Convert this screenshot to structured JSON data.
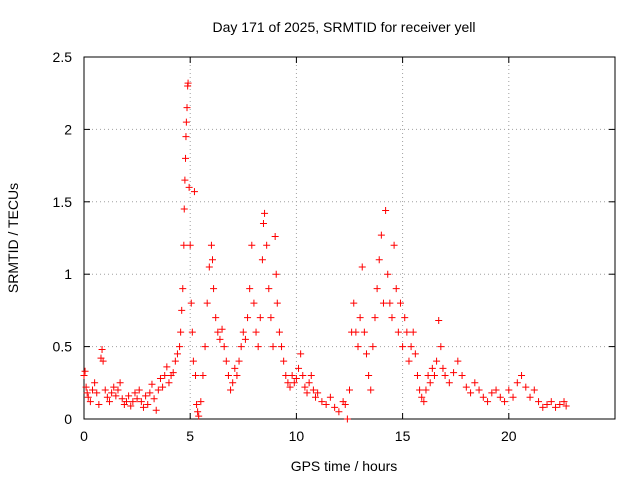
{
  "chart_data": {
    "type": "scatter",
    "title": "Day 171 of 2025, SRMTID for receiver yell",
    "xlabel": "GPS time / hours",
    "ylabel": "SRMTID / TECUs",
    "xlim": [
      0,
      25
    ],
    "ylim": [
      0,
      2.5
    ],
    "x_ticks": [
      0,
      5,
      10,
      15,
      20
    ],
    "x_tick_labels": [
      "0",
      "5",
      "10",
      "15",
      "20"
    ],
    "y_ticks": [
      0,
      0.5,
      1,
      1.5,
      2,
      2.5
    ],
    "y_tick_labels": [
      "0",
      "0.5",
      "1",
      "1.5",
      "2",
      "2.5"
    ],
    "grid": true,
    "marker": "plus",
    "color": "#ff0000",
    "series": [
      {
        "name": "SRMTID",
        "points": [
          [
            0.0,
            0.3
          ],
          [
            0.05,
            0.33
          ],
          [
            0.1,
            0.22
          ],
          [
            0.15,
            0.18
          ],
          [
            0.2,
            0.15
          ],
          [
            0.3,
            0.12
          ],
          [
            0.4,
            0.2
          ],
          [
            0.5,
            0.25
          ],
          [
            0.6,
            0.18
          ],
          [
            0.7,
            0.1
          ],
          [
            0.8,
            0.42
          ],
          [
            0.85,
            0.48
          ],
          [
            0.9,
            0.4
          ],
          [
            1.0,
            0.2
          ],
          [
            1.1,
            0.15
          ],
          [
            1.2,
            0.12
          ],
          [
            1.3,
            0.18
          ],
          [
            1.4,
            0.22
          ],
          [
            1.5,
            0.16
          ],
          [
            1.6,
            0.2
          ],
          [
            1.7,
            0.25
          ],
          [
            1.8,
            0.14
          ],
          [
            1.9,
            0.1
          ],
          [
            2.0,
            0.12
          ],
          [
            2.1,
            0.16
          ],
          [
            2.2,
            0.09
          ],
          [
            2.3,
            0.12
          ],
          [
            2.4,
            0.18
          ],
          [
            2.5,
            0.14
          ],
          [
            2.6,
            0.2
          ],
          [
            2.7,
            0.12
          ],
          [
            2.8,
            0.08
          ],
          [
            2.9,
            0.16
          ],
          [
            3.0,
            0.1
          ],
          [
            3.1,
            0.18
          ],
          [
            3.2,
            0.24
          ],
          [
            3.3,
            0.14
          ],
          [
            3.4,
            0.06
          ],
          [
            3.5,
            0.2
          ],
          [
            3.6,
            0.28
          ],
          [
            3.7,
            0.22
          ],
          [
            3.8,
            0.3
          ],
          [
            3.9,
            0.36
          ],
          [
            4.0,
            0.25
          ],
          [
            4.1,
            0.3
          ],
          [
            4.2,
            0.32
          ],
          [
            4.3,
            0.4
          ],
          [
            4.4,
            0.45
          ],
          [
            4.5,
            0.5
          ],
          [
            4.55,
            0.6
          ],
          [
            4.6,
            0.75
          ],
          [
            4.65,
            0.9
          ],
          [
            4.7,
            1.2
          ],
          [
            4.72,
            1.45
          ],
          [
            4.75,
            1.65
          ],
          [
            4.78,
            1.8
          ],
          [
            4.8,
            1.95
          ],
          [
            4.82,
            2.05
          ],
          [
            4.85,
            2.15
          ],
          [
            4.88,
            2.3
          ],
          [
            4.9,
            2.32
          ],
          [
            4.95,
            1.6
          ],
          [
            5.0,
            1.2
          ],
          [
            5.05,
            0.8
          ],
          [
            5.1,
            0.6
          ],
          [
            5.15,
            0.4
          ],
          [
            5.2,
            1.57
          ],
          [
            5.25,
            0.3
          ],
          [
            5.3,
            0.1
          ],
          [
            5.35,
            0.05
          ],
          [
            5.4,
            0.02
          ],
          [
            5.5,
            0.12
          ],
          [
            5.6,
            0.3
          ],
          [
            5.7,
            0.5
          ],
          [
            5.8,
            0.8
          ],
          [
            5.9,
            1.05
          ],
          [
            6.0,
            1.2
          ],
          [
            6.05,
            1.1
          ],
          [
            6.1,
            0.9
          ],
          [
            6.2,
            0.7
          ],
          [
            6.3,
            0.6
          ],
          [
            6.4,
            0.55
          ],
          [
            6.5,
            0.62
          ],
          [
            6.6,
            0.5
          ],
          [
            6.7,
            0.4
          ],
          [
            6.8,
            0.3
          ],
          [
            6.9,
            0.2
          ],
          [
            7.0,
            0.25
          ],
          [
            7.1,
            0.35
          ],
          [
            7.2,
            0.3
          ],
          [
            7.3,
            0.4
          ],
          [
            7.4,
            0.5
          ],
          [
            7.5,
            0.6
          ],
          [
            7.6,
            0.55
          ],
          [
            7.7,
            0.7
          ],
          [
            7.8,
            0.9
          ],
          [
            7.9,
            1.2
          ],
          [
            8.0,
            0.8
          ],
          [
            8.1,
            0.6
          ],
          [
            8.2,
            0.5
          ],
          [
            8.3,
            0.7
          ],
          [
            8.4,
            1.1
          ],
          [
            8.45,
            1.35
          ],
          [
            8.5,
            1.42
          ],
          [
            8.6,
            1.2
          ],
          [
            8.7,
            0.9
          ],
          [
            8.8,
            0.7
          ],
          [
            8.9,
            0.5
          ],
          [
            9.0,
            1.26
          ],
          [
            9.05,
            1.0
          ],
          [
            9.1,
            0.8
          ],
          [
            9.2,
            0.6
          ],
          [
            9.3,
            0.5
          ],
          [
            9.4,
            0.4
          ],
          [
            9.5,
            0.3
          ],
          [
            9.6,
            0.25
          ],
          [
            9.7,
            0.22
          ],
          [
            9.8,
            0.3
          ],
          [
            9.9,
            0.25
          ],
          [
            10.0,
            0.28
          ],
          [
            10.1,
            0.35
          ],
          [
            10.2,
            0.45
          ],
          [
            10.3,
            0.3
          ],
          [
            10.4,
            0.22
          ],
          [
            10.5,
            0.18
          ],
          [
            10.6,
            0.25
          ],
          [
            10.7,
            0.3
          ],
          [
            10.8,
            0.2
          ],
          [
            10.9,
            0.15
          ],
          [
            11.0,
            0.18
          ],
          [
            11.2,
            0.12
          ],
          [
            11.4,
            0.1
          ],
          [
            11.6,
            0.15
          ],
          [
            11.8,
            0.08
          ],
          [
            12.0,
            0.05
          ],
          [
            12.2,
            0.12
          ],
          [
            12.3,
            0.1
          ],
          [
            12.4,
            0.0
          ],
          [
            12.5,
            0.2
          ],
          [
            12.6,
            0.6
          ],
          [
            12.7,
            0.8
          ],
          [
            12.8,
            0.6
          ],
          [
            12.9,
            0.5
          ],
          [
            13.0,
            0.7
          ],
          [
            13.1,
            1.05
          ],
          [
            13.2,
            0.6
          ],
          [
            13.3,
            0.45
          ],
          [
            13.4,
            0.3
          ],
          [
            13.5,
            0.2
          ],
          [
            13.6,
            0.5
          ],
          [
            13.7,
            0.7
          ],
          [
            13.8,
            0.9
          ],
          [
            13.9,
            1.1
          ],
          [
            14.0,
            1.27
          ],
          [
            14.1,
            0.8
          ],
          [
            14.2,
            1.44
          ],
          [
            14.3,
            1.0
          ],
          [
            14.4,
            0.8
          ],
          [
            14.5,
            0.7
          ],
          [
            14.6,
            1.2
          ],
          [
            14.7,
            0.9
          ],
          [
            14.8,
            0.6
          ],
          [
            14.9,
            0.8
          ],
          [
            15.0,
            0.5
          ],
          [
            15.1,
            0.7
          ],
          [
            15.2,
            0.6
          ],
          [
            15.3,
            0.4
          ],
          [
            15.4,
            0.5
          ],
          [
            15.5,
            0.6
          ],
          [
            15.6,
            0.45
          ],
          [
            15.7,
            0.3
          ],
          [
            15.8,
            0.2
          ],
          [
            15.9,
            0.15
          ],
          [
            16.0,
            0.12
          ],
          [
            16.1,
            0.2
          ],
          [
            16.2,
            0.3
          ],
          [
            16.3,
            0.25
          ],
          [
            16.4,
            0.35
          ],
          [
            16.5,
            0.3
          ],
          [
            16.6,
            0.4
          ],
          [
            16.7,
            0.68
          ],
          [
            16.8,
            0.5
          ],
          [
            16.9,
            0.35
          ],
          [
            17.0,
            0.3
          ],
          [
            17.2,
            0.25
          ],
          [
            17.4,
            0.32
          ],
          [
            17.6,
            0.4
          ],
          [
            17.8,
            0.3
          ],
          [
            18.0,
            0.22
          ],
          [
            18.2,
            0.18
          ],
          [
            18.4,
            0.25
          ],
          [
            18.6,
            0.2
          ],
          [
            18.8,
            0.15
          ],
          [
            19.0,
            0.12
          ],
          [
            19.2,
            0.18
          ],
          [
            19.4,
            0.2
          ],
          [
            19.6,
            0.15
          ],
          [
            19.8,
            0.12
          ],
          [
            20.0,
            0.2
          ],
          [
            20.2,
            0.15
          ],
          [
            20.4,
            0.25
          ],
          [
            20.6,
            0.3
          ],
          [
            20.8,
            0.22
          ],
          [
            21.0,
            0.15
          ],
          [
            21.2,
            0.2
          ],
          [
            21.4,
            0.12
          ],
          [
            21.6,
            0.08
          ],
          [
            21.8,
            0.1
          ],
          [
            22.0,
            0.12
          ],
          [
            22.2,
            0.08
          ],
          [
            22.4,
            0.1
          ],
          [
            22.6,
            0.12
          ],
          [
            22.7,
            0.09
          ]
        ]
      }
    ]
  }
}
